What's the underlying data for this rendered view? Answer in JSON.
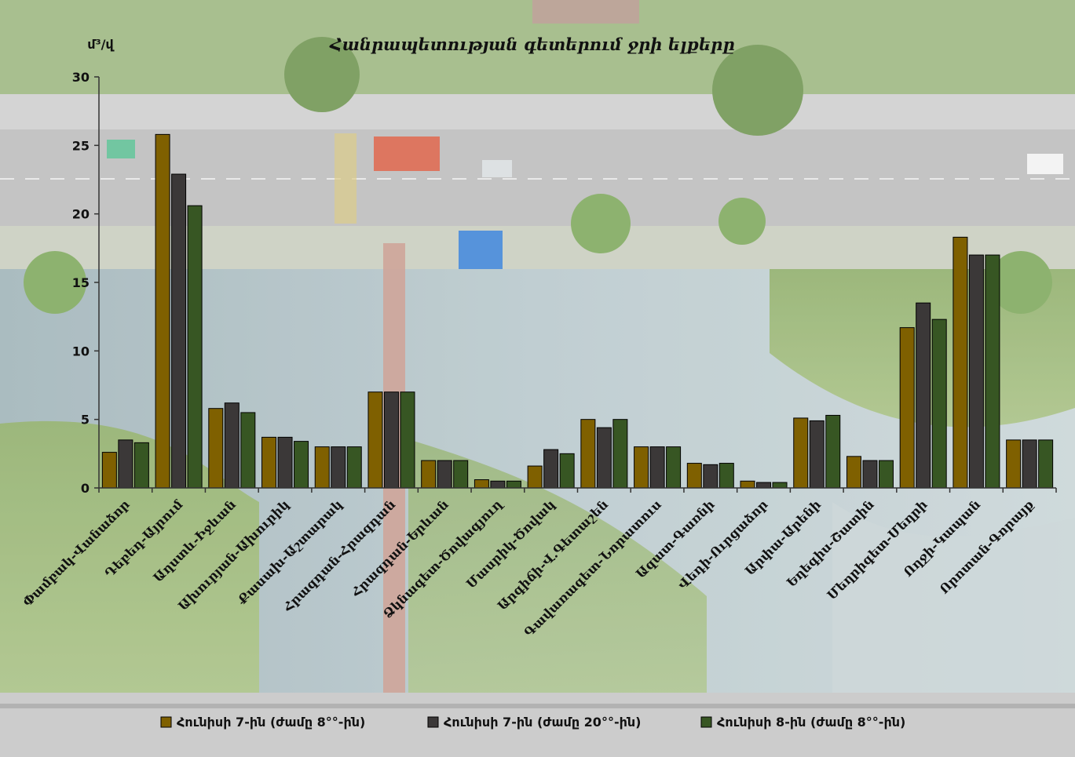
{
  "chart_data": {
    "type": "bar",
    "title": "Հանրապետության գետերում ջրի ելքերը",
    "ylabel": "մ³/վ",
    "ylim": [
      0,
      30
    ],
    "yticks": [
      0,
      5,
      10,
      15,
      20,
      25,
      30
    ],
    "legend_position": "bottom",
    "grid": false,
    "categories": [
      "Փամբակ-Վանաձոր",
      "Դեբեդ-Այրում",
      "Աղստև-Իջևան",
      "Ախուրյան-Ախուրիկ",
      "Քասախ-Աշտարակ",
      "Հրազդան-Հրազդան",
      "Հրազդան-Երևան",
      "Ձկնագետ-Ծովագյուղ",
      "Մասրիկ-Ծովակ",
      "Արգիճի-Վ.Գետաշեն",
      "Գավառագետ-Նորատուս",
      "Ազատ-Գառնի",
      "Վեդի-Ուրցաձոր",
      "Արփա-Արենի",
      "Եղեգիս-Շատին",
      "Մեղրիգետ-Մեղրի",
      "Ողջի-Կապան",
      "Որոտան-Գորայք"
    ],
    "series": [
      {
        "name": "Հունիսի 7-ին (ժամը 8°°-ին)",
        "color": "#7F6000",
        "values": [
          2.6,
          25.8,
          5.8,
          3.7,
          3.0,
          7.0,
          2.0,
          0.6,
          1.6,
          5.0,
          3.0,
          1.8,
          0.5,
          5.1,
          2.3,
          11.7,
          18.3,
          3.5
        ]
      },
      {
        "name": "Հունիսի 7-ին (ժամը 20°°-ին)",
        "color": "#3B3838",
        "values": [
          3.5,
          22.9,
          6.2,
          3.7,
          3.0,
          7.0,
          2.0,
          0.5,
          2.8,
          4.4,
          3.0,
          1.7,
          0.4,
          4.9,
          2.0,
          13.5,
          17.0,
          3.5
        ]
      },
      {
        "name": "Հունիսի 8-ին (ժամը 8°°-ին)",
        "color": "#375623",
        "values": [
          3.3,
          20.6,
          5.5,
          3.4,
          3.0,
          7.0,
          2.0,
          0.5,
          2.5,
          5.0,
          3.0,
          1.8,
          0.4,
          5.3,
          2.0,
          12.3,
          17.0,
          3.5
        ]
      }
    ]
  }
}
